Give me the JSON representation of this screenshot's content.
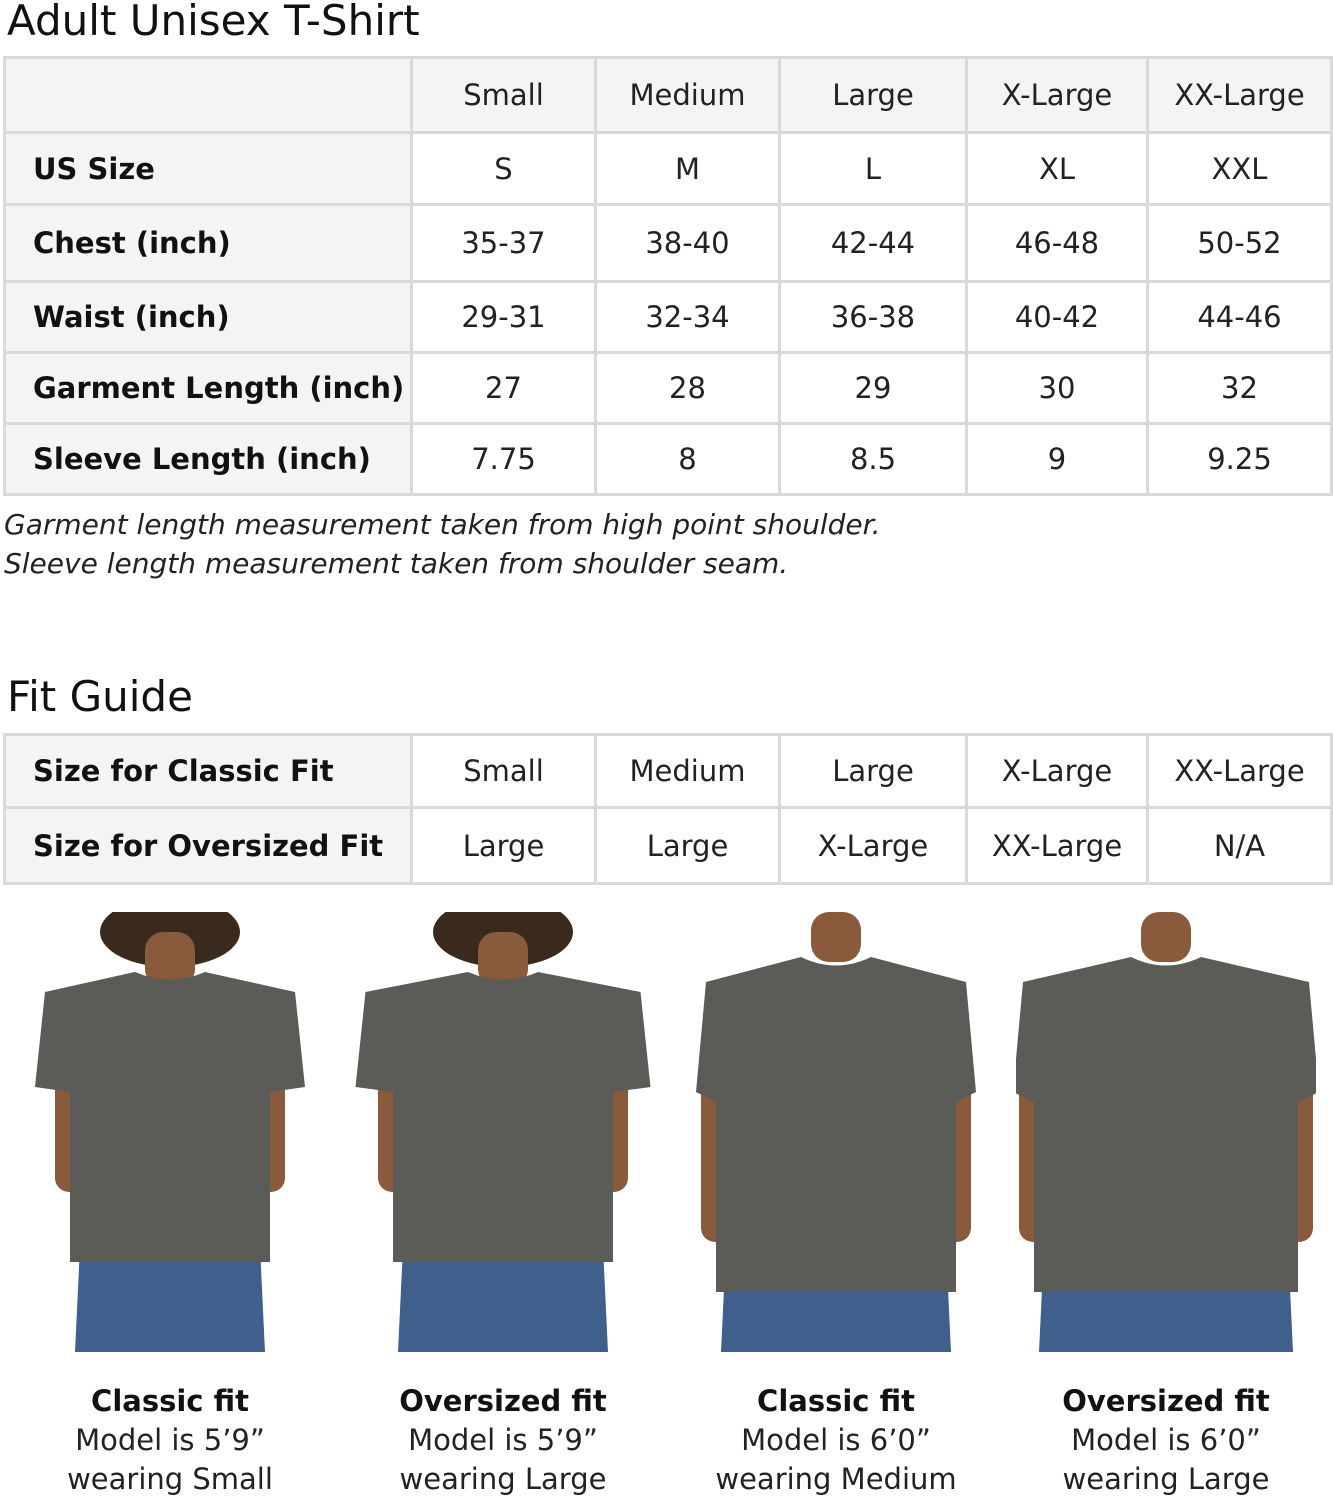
{
  "size_chart": {
    "title": "Adult Unisex T-Shirt",
    "columns": [
      "Small",
      "Medium",
      "Large",
      "X-Large",
      "XX-Large"
    ],
    "rows": [
      {
        "label": "US Size",
        "values": [
          "S",
          "M",
          "L",
          "XL",
          "XXL"
        ]
      },
      {
        "label": "Chest (inch)",
        "values": [
          "35-37",
          "38-40",
          "42-44",
          "46-48",
          "50-52"
        ]
      },
      {
        "label": "Waist (inch)",
        "values": [
          "29-31",
          "32-34",
          "36-38",
          "40-42",
          "44-46"
        ]
      },
      {
        "label": "Garment Length (inch)",
        "values": [
          "27",
          "28",
          "29",
          "30",
          "32"
        ]
      },
      {
        "label": "Sleeve Length (inch)",
        "values": [
          "7.75",
          "8",
          "8.5",
          "9",
          "9.25"
        ]
      }
    ],
    "notes": [
      "Garment length measurement taken from high point shoulder.",
      "Sleeve length measurement taken from shoulder seam."
    ]
  },
  "fit_guide": {
    "title": "Fit Guide",
    "rows": [
      {
        "label": "Size for Classic Fit",
        "values": [
          "Small",
          "Medium",
          "Large",
          "X-Large",
          "XX-Large"
        ]
      },
      {
        "label": "Size for Oversized Fit",
        "values": [
          "Large",
          "Large",
          "X-Large",
          "XX-Large",
          "N/A"
        ]
      }
    ]
  },
  "models": [
    {
      "fit": "Classic fit",
      "height": "Model is 5’9”",
      "wearing": "wearing Small"
    },
    {
      "fit": "Oversized fit",
      "height": "Model is 5’9”",
      "wearing": "wearing Large"
    },
    {
      "fit": "Classic fit",
      "height": "Model is 6’0”",
      "wearing": "wearing Medium"
    },
    {
      "fit": "Oversized fit",
      "height": "Model is 6’0”",
      "wearing": "wearing Large"
    }
  ],
  "colors": {
    "shirt": "#5b5c57",
    "jeans": "#3f5f8c",
    "border": "#d9d9d9",
    "label_bg": "#f4f4f4"
  }
}
